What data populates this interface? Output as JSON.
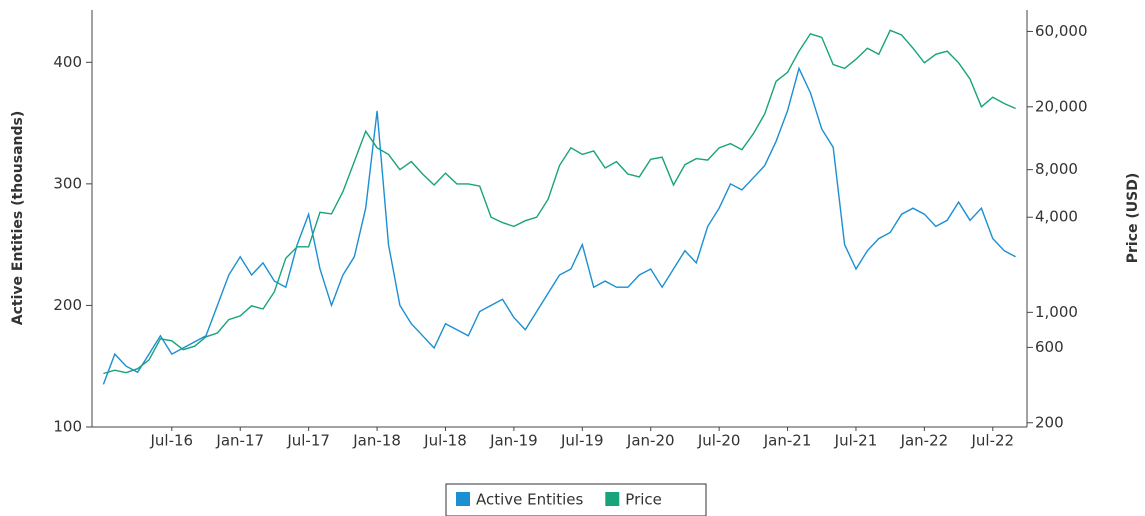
{
  "chart_data": {
    "type": "line",
    "y_label": "Active Entities (thousands)",
    "y2_label": "Price (USD)",
    "x": [
      "2016-01",
      "2016-02",
      "2016-03",
      "2016-04",
      "2016-05",
      "2016-06",
      "2016-07",
      "2016-08",
      "2016-09",
      "2016-10",
      "2016-11",
      "2016-12",
      "2017-01",
      "2017-02",
      "2017-03",
      "2017-04",
      "2017-05",
      "2017-06",
      "2017-07",
      "2017-08",
      "2017-09",
      "2017-10",
      "2017-11",
      "2017-12",
      "2018-01",
      "2018-02",
      "2018-03",
      "2018-04",
      "2018-05",
      "2018-06",
      "2018-07",
      "2018-08",
      "2018-09",
      "2018-10",
      "2018-11",
      "2018-12",
      "2019-01",
      "2019-02",
      "2019-03",
      "2019-04",
      "2019-05",
      "2019-06",
      "2019-07",
      "2019-08",
      "2019-09",
      "2019-10",
      "2019-11",
      "2019-12",
      "2020-01",
      "2020-02",
      "2020-03",
      "2020-04",
      "2020-05",
      "2020-06",
      "2020-07",
      "2020-08",
      "2020-09",
      "2020-10",
      "2020-11",
      "2020-12",
      "2021-01",
      "2021-02",
      "2021-03",
      "2021-04",
      "2021-05",
      "2021-06",
      "2021-07",
      "2021-08",
      "2021-09",
      "2021-10",
      "2021-11",
      "2021-12",
      "2022-01",
      "2022-02",
      "2022-03",
      "2022-04",
      "2022-05",
      "2022-06",
      "2022-07",
      "2022-08",
      "2022-09"
    ],
    "series": [
      {
        "name": "Active Entities",
        "color": "#1b8fd2",
        "values": [
          135,
          160,
          150,
          145,
          160,
          175,
          160,
          165,
          170,
          175,
          200,
          225,
          240,
          225,
          235,
          220,
          215,
          250,
          275,
          230,
          200,
          225,
          240,
          280,
          360,
          250,
          200,
          185,
          175,
          165,
          185,
          180,
          175,
          195,
          200,
          205,
          190,
          180,
          195,
          210,
          225,
          230,
          250,
          215,
          220,
          215,
          215,
          225,
          230,
          215,
          230,
          245,
          235,
          265,
          280,
          300,
          295,
          305,
          315,
          335,
          360,
          395,
          375,
          345,
          330,
          250,
          230,
          245,
          255,
          260,
          275,
          280,
          275,
          265,
          270,
          285,
          270,
          280,
          255,
          245,
          240
        ]
      },
      {
        "name": "Price",
        "color": "#17a37b",
        "axis": "y2",
        "values": [
          410,
          430,
          415,
          440,
          500,
          680,
          660,
          580,
          610,
          700,
          740,
          900,
          950,
          1100,
          1050,
          1350,
          2200,
          2600,
          2600,
          4300,
          4200,
          5800,
          9000,
          14000,
          11000,
          10000,
          8000,
          9000,
          7500,
          6400,
          7600,
          6500,
          6500,
          6300,
          4000,
          3700,
          3500,
          3800,
          4000,
          5200,
          8500,
          11000,
          10000,
          10500,
          8200,
          9000,
          7500,
          7200,
          9300,
          9600,
          6400,
          8600,
          9400,
          9200,
          11000,
          11700,
          10700,
          13500,
          18000,
          29000,
          33000,
          45000,
          58000,
          55000,
          37000,
          35000,
          40000,
          47000,
          43000,
          61000,
          57000,
          47000,
          38000,
          43000,
          45000,
          38000,
          30000,
          20000,
          23000,
          21000,
          19500
        ]
      }
    ],
    "xlim": [
      "2015-12",
      "2022-10"
    ],
    "xticks": [
      {
        "value": "2016-07",
        "label": "Jul-16"
      },
      {
        "value": "2017-01",
        "label": "Jan-17"
      },
      {
        "value": "2017-07",
        "label": "Jul-17"
      },
      {
        "value": "2018-01",
        "label": "Jan-18"
      },
      {
        "value": "2018-07",
        "label": "Jul-18"
      },
      {
        "value": "2019-01",
        "label": "Jan-19"
      },
      {
        "value": "2019-07",
        "label": "Jul-19"
      },
      {
        "value": "2020-01",
        "label": "Jan-20"
      },
      {
        "value": "2020-07",
        "label": "Jul-20"
      },
      {
        "value": "2021-01",
        "label": "Jan-21"
      },
      {
        "value": "2021-07",
        "label": "Jul-21"
      },
      {
        "value": "2022-01",
        "label": "Jan-22"
      },
      {
        "value": "2022-07",
        "label": "Jul-22"
      }
    ],
    "ylim": [
      100,
      443
    ],
    "yticks": [
      100,
      200,
      300,
      400
    ],
    "y2lim": [
      188,
      82000
    ],
    "y2_log": true,
    "y2ticks": [
      200,
      600,
      {
        "value": 1000,
        "label": "1,000"
      },
      {
        "value": 4000,
        "label": "4,000"
      },
      {
        "value": 8000,
        "label": "8,000"
      },
      {
        "value": 20000,
        "label": "20,000"
      },
      {
        "value": 60000,
        "label": "60,000"
      }
    ],
    "legend": "bottom"
  }
}
